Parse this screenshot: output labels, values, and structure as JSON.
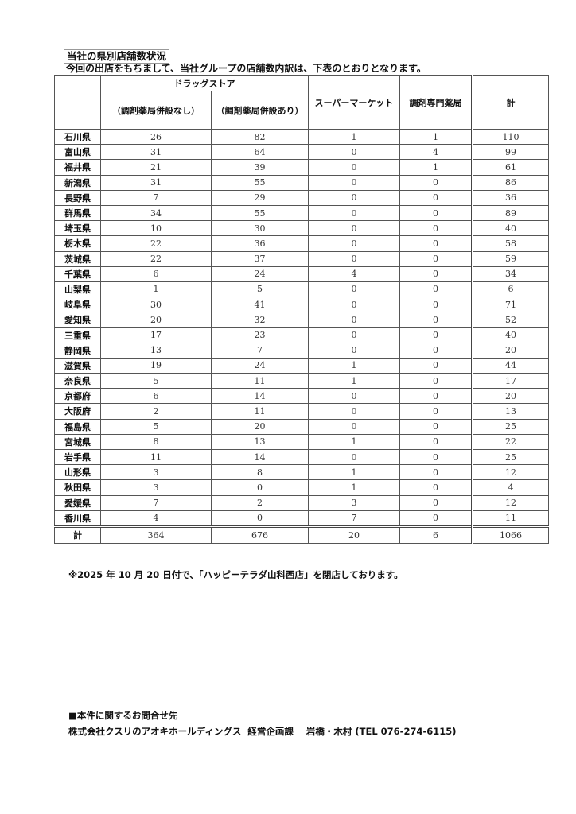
{
  "title": "当社の県別店舗数状況",
  "intro": "今回の出店をもちまして、当社グループの店舗数内訳は、下表のとおりとなります。",
  "table": {
    "group_header": "ドラッグストア",
    "headers": [
      "（調剤薬局併設なし）",
      "（調剤薬局併設あり）",
      "スーパーマーケット",
      "調剤専門薬局",
      "計"
    ],
    "rows": [
      [
        "石川県",
        "26",
        "82",
        "1",
        "1",
        "110"
      ],
      [
        "富山県",
        "31",
        "64",
        "0",
        "4",
        "99"
      ],
      [
        "福井県",
        "21",
        "39",
        "0",
        "1",
        "61"
      ],
      [
        "新潟県",
        "31",
        "55",
        "0",
        "0",
        "86"
      ],
      [
        "長野県",
        "7",
        "29",
        "0",
        "0",
        "36"
      ],
      [
        "群馬県",
        "34",
        "55",
        "0",
        "0",
        "89"
      ],
      [
        "埼玉県",
        "10",
        "30",
        "0",
        "0",
        "40"
      ],
      [
        "栃木県",
        "22",
        "36",
        "0",
        "0",
        "58"
      ],
      [
        "茨城県",
        "22",
        "37",
        "0",
        "0",
        "59"
      ],
      [
        "千葉県",
        "6",
        "24",
        "4",
        "0",
        "34"
      ],
      [
        "山梨県",
        "1",
        "5",
        "0",
        "0",
        "6"
      ],
      [
        "岐阜県",
        "30",
        "41",
        "0",
        "0",
        "71"
      ],
      [
        "愛知県",
        "20",
        "32",
        "0",
        "0",
        "52"
      ],
      [
        "三重県",
        "17",
        "23",
        "0",
        "0",
        "40"
      ],
      [
        "静岡県",
        "13",
        "7",
        "0",
        "0",
        "20"
      ],
      [
        "滋賀県",
        "19",
        "24",
        "1",
        "0",
        "44"
      ],
      [
        "奈良県",
        "5",
        "11",
        "1",
        "0",
        "17"
      ],
      [
        "京都府",
        "6",
        "14",
        "0",
        "0",
        "20"
      ],
      [
        "大阪府",
        "2",
        "11",
        "0",
        "0",
        "13"
      ],
      [
        "福島県",
        "5",
        "20",
        "0",
        "0",
        "25"
      ],
      [
        "宮城県",
        "8",
        "13",
        "1",
        "0",
        "22"
      ],
      [
        "岩手県",
        "11",
        "14",
        "0",
        "0",
        "25"
      ],
      [
        "山形県",
        "3",
        "8",
        "1",
        "0",
        "12"
      ],
      [
        "秋田県",
        "3",
        "0",
        "1",
        "0",
        "4"
      ],
      [
        "愛媛県",
        "7",
        "2",
        "3",
        "0",
        "12"
      ],
      [
        "香川県",
        "4",
        "0",
        "7",
        "0",
        "11"
      ]
    ],
    "total": [
      "計",
      "364",
      "676",
      "20",
      "6",
      "1066"
    ]
  },
  "note": "※2025 年 10 月 20 日付で、「ハッピーテラダ山科西店」を閉店しております。",
  "contact": {
    "heading": "■本件に関するお問合せ先",
    "line": "株式会社クスリのアオキホールディングス  経営企画課    岩橋・木村 (TEL 076-274-6115)"
  }
}
